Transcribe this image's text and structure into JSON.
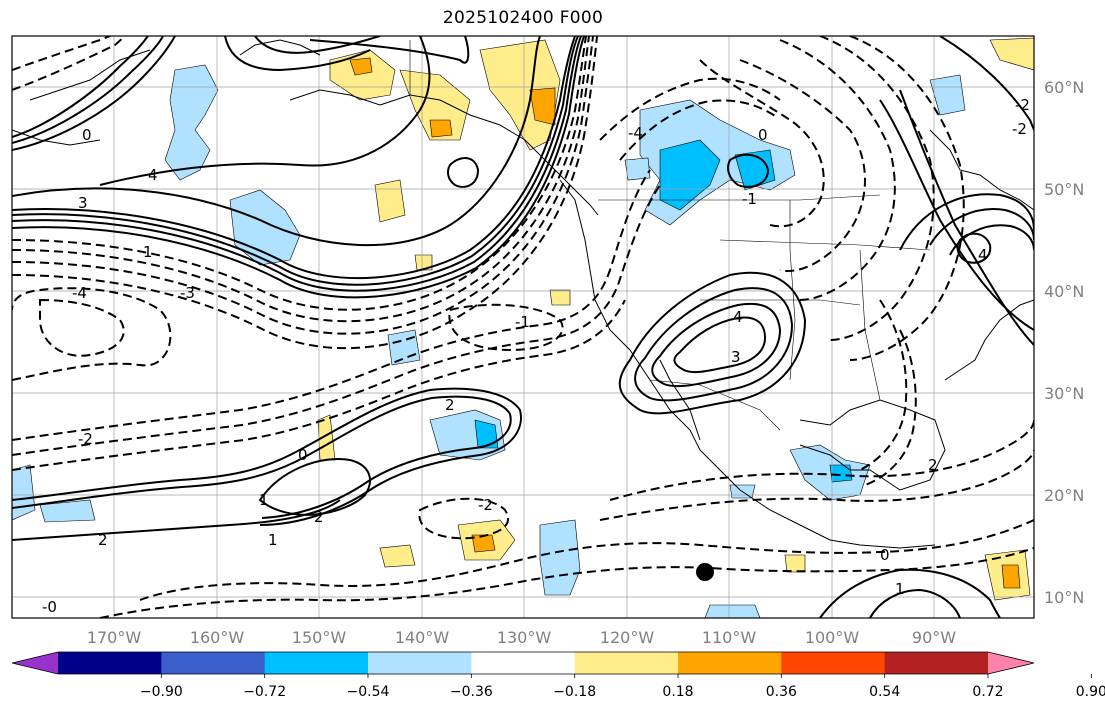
{
  "title": "2025102400 F000",
  "map": {
    "lon_ticks": [
      "170°W",
      "160°W",
      "150°W",
      "140°W",
      "130°W",
      "120°W",
      "110°W",
      "100°W",
      "90°W"
    ],
    "lat_ticks": [
      "60°N",
      "50°N",
      "40°N",
      "30°N",
      "20°N",
      "10°N"
    ],
    "contour_labels": [
      "2",
      "3",
      "4",
      "-3",
      "1",
      "0",
      "-1",
      "-2",
      "-4",
      "4",
      "3",
      "2",
      "0",
      "1",
      "-2",
      "2",
      "1",
      "-0",
      "2",
      "1",
      "0",
      "-2",
      "4",
      "-1",
      "0",
      "-4",
      "-2"
    ],
    "marker": "black-dot"
  },
  "colorbar": {
    "ticks": [
      "−0.90",
      "−0.72",
      "−0.54",
      "−0.36",
      "−0.18",
      "0.18",
      "0.36",
      "0.54",
      "0.72",
      "0.90"
    ],
    "colors": [
      "#9932CC",
      "#00008B",
      "#3A5FCD",
      "#00BFFF",
      "#B0E2FF",
      "#FFFFFF",
      "#FFEC8B",
      "#FFA500",
      "#FF4500",
      "#B22222",
      "#FF82AB"
    ]
  }
}
